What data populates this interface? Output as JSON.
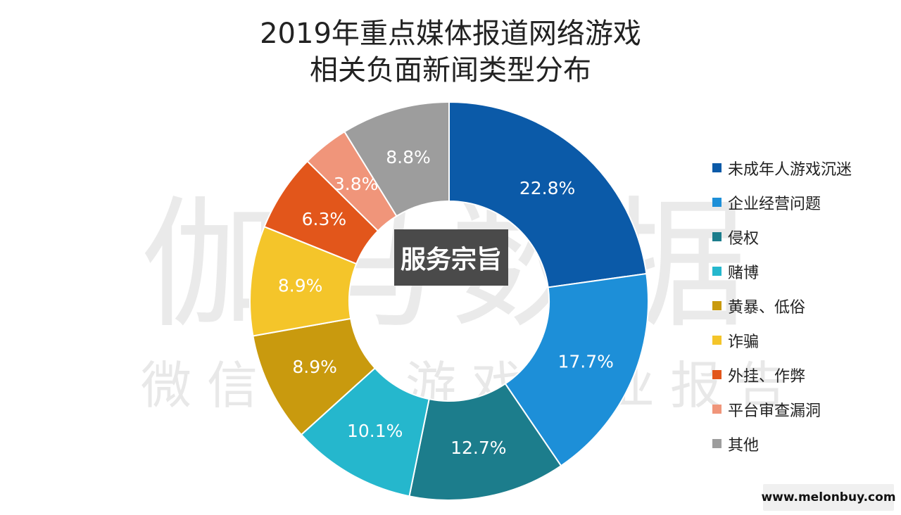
{
  "title": {
    "line1": "2019年重点媒体报道网络游戏",
    "line2": "相关负面新闻类型分布"
  },
  "watermark": {
    "big": "伽马数据",
    "small": "微信号：游戏产业报告"
  },
  "stamp": "服务宗旨",
  "footer": "www.melonbuy.com",
  "chart_data": {
    "type": "pie",
    "donut": true,
    "start": "12 o'clock, clockwise",
    "legend_position": "right",
    "slices": [
      {
        "label": "未成年人游戏沉迷",
        "value": 22.8,
        "display": "22.8%",
        "color": "#0b5aa8"
      },
      {
        "label": "企业经营问题",
        "value": 17.7,
        "display": "17.7%",
        "color": "#1d8fd8"
      },
      {
        "label": "侵权",
        "value": 12.7,
        "display": "12.7%",
        "color": "#1c7d8c"
      },
      {
        "label": "赌博",
        "value": 10.1,
        "display": "10.1%",
        "color": "#25b7cd"
      },
      {
        "label": "黄暴、低俗",
        "value": 8.9,
        "display": "8.9%",
        "color": "#c99a0e"
      },
      {
        "label": "诈骗",
        "value": 8.9,
        "display": "8.9%",
        "color": "#f4c52a"
      },
      {
        "label": "外挂、作弊",
        "value": 6.3,
        "display": "6.3%",
        "color": "#e2561b"
      },
      {
        "label": "平台审查漏洞",
        "value": 3.8,
        "display": "3.8%",
        "color": "#f0957a"
      },
      {
        "label": "其他",
        "value": 8.8,
        "display": "8.8%",
        "color": "#9d9d9d"
      }
    ]
  }
}
